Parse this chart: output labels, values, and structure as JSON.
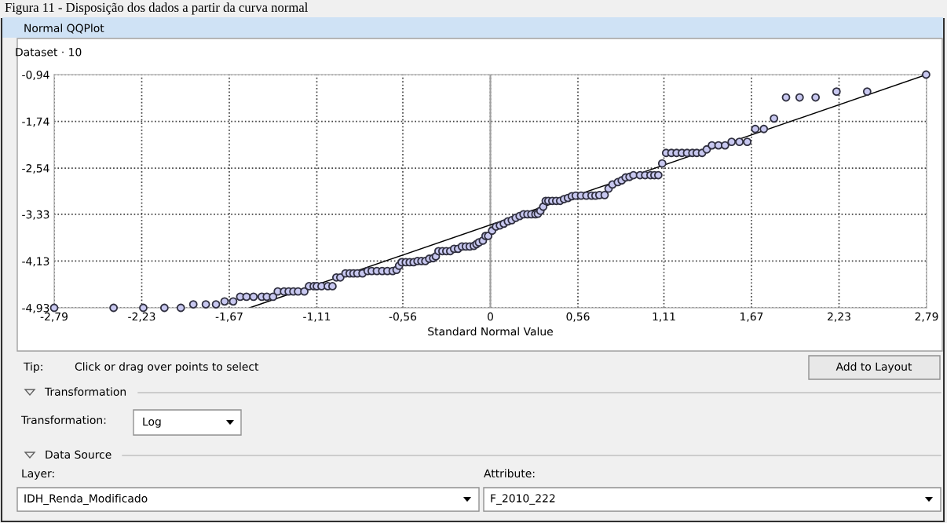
{
  "chart_data": {
    "type": "scatter",
    "title": "Figura 11 - Disposição dos dados a partir da curva normal",
    "subtitle": "Normal QQPlot",
    "xlabel": "Standard Normal Value",
    "ylabel": "Dataset · 10",
    "xlim": [
      -2.79,
      2.79
    ],
    "ylim": [
      -4.93,
      -0.94
    ],
    "xticks": [
      {
        "value": -2.79,
        "label": "-2,79"
      },
      {
        "value": -2.23,
        "label": "-2,23"
      },
      {
        "value": -1.67,
        "label": "-1,67"
      },
      {
        "value": -1.11,
        "label": "-1,11"
      },
      {
        "value": -0.56,
        "label": "-0,56"
      },
      0,
      {
        "value": 0.56,
        "label": "0,56"
      },
      {
        "value": 1.11,
        "label": "1,11"
      },
      {
        "value": 1.67,
        "label": "1,67"
      },
      {
        "value": 2.23,
        "label": "2,23"
      },
      {
        "value": 2.79,
        "label": "2,79"
      }
    ],
    "yticks": [
      {
        "value": -0.94,
        "label": "-0,94"
      },
      {
        "value": -1.74,
        "label": "-1,74"
      },
      {
        "value": -2.54,
        "label": "-2,54"
      },
      {
        "value": -3.33,
        "label": "-3,33"
      },
      {
        "value": -4.13,
        "label": "-4,13"
      },
      {
        "value": -4.93,
        "label": "-4,93"
      }
    ],
    "grid": true,
    "ref_lines": [
      {
        "axis": "x",
        "value": 0,
        "color": "#a0a0a0"
      }
    ],
    "series": [
      {
        "color": "#c8c8f0",
        "marker": "circle",
        "x": [
          -2.79,
          -2.41,
          -2.22,
          -2.085,
          -1.98,
          -1.9,
          -1.82,
          -1.755,
          -1.7,
          -1.645,
          -1.6,
          -1.56,
          -1.515,
          -1.462,
          -1.43,
          -1.39,
          -1.36,
          -1.32,
          -1.29,
          -1.26,
          -1.23,
          -1.19,
          -1.16,
          -1.13,
          -1.11,
          -1.08,
          -1.04,
          -1.01,
          -0.985,
          -0.96,
          -0.927,
          -0.9,
          -0.876,
          -0.851,
          -0.818,
          -0.785,
          -0.759,
          -0.726,
          -0.692,
          -0.659,
          -0.625,
          -0.6,
          -0.584,
          -0.567,
          -0.541,
          -0.516,
          -0.491,
          -0.466,
          -0.441,
          -0.416,
          -0.391,
          -0.366,
          -0.349,
          -0.332,
          -0.307,
          -0.282,
          -0.257,
          -0.232,
          -0.207,
          -0.182,
          -0.157,
          -0.132,
          -0.106,
          -0.089,
          -0.073,
          -0.048,
          -0.031,
          -0.014,
          0.011,
          0.036,
          0.061,
          0.086,
          0.112,
          0.137,
          0.162,
          0.187,
          0.212,
          0.237,
          0.262,
          0.288,
          0.304,
          0.32,
          0.338,
          0.354,
          0.371,
          0.396,
          0.421,
          0.446,
          0.471,
          0.496,
          0.521,
          0.546,
          0.58,
          0.614,
          0.647,
          0.672,
          0.697,
          0.731,
          0.756,
          0.781,
          0.815,
          0.84,
          0.865,
          0.89,
          0.915,
          0.957,
          0.99,
          1.024,
          1.049,
          1.074,
          1.099,
          1.124,
          1.158,
          1.191,
          1.225,
          1.258,
          1.292,
          1.32,
          1.354,
          1.384,
          1.417,
          1.459,
          1.501,
          1.543,
          1.593,
          1.643,
          1.694,
          1.749,
          1.814,
          1.891,
          1.978,
          2.08,
          2.214,
          2.41,
          2.787
        ],
        "values": [
          -4.93,
          -4.93,
          -4.93,
          -4.93,
          -4.93,
          -4.87,
          -4.87,
          -4.87,
          -4.82,
          -4.82,
          -4.74,
          -4.74,
          -4.74,
          -4.74,
          -4.74,
          -4.74,
          -4.65,
          -4.65,
          -4.65,
          -4.65,
          -4.65,
          -4.65,
          -4.56,
          -4.56,
          -4.56,
          -4.56,
          -4.56,
          -4.56,
          -4.41,
          -4.41,
          -4.34,
          -4.34,
          -4.34,
          -4.34,
          -4.34,
          -4.3,
          -4.3,
          -4.3,
          -4.3,
          -4.3,
          -4.3,
          -4.28,
          -4.21,
          -4.15,
          -4.15,
          -4.15,
          -4.15,
          -4.13,
          -4.13,
          -4.13,
          -4.09,
          -4.08,
          -4.05,
          -3.96,
          -3.96,
          -3.96,
          -3.96,
          -3.92,
          -3.92,
          -3.88,
          -3.88,
          -3.88,
          -3.87,
          -3.84,
          -3.81,
          -3.78,
          -3.7,
          -3.7,
          -3.61,
          -3.54,
          -3.52,
          -3.49,
          -3.45,
          -3.43,
          -3.39,
          -3.36,
          -3.33,
          -3.33,
          -3.33,
          -3.33,
          -3.32,
          -3.27,
          -3.2,
          -3.1,
          -3.1,
          -3.1,
          -3.1,
          -3.1,
          -3.07,
          -3.05,
          -3.02,
          -3.01,
          -3.01,
          -3.01,
          -3.01,
          -3.01,
          -3.0,
          -3.0,
          -2.89,
          -2.82,
          -2.78,
          -2.75,
          -2.7,
          -2.69,
          -2.66,
          -2.66,
          -2.66,
          -2.66,
          -2.66,
          -2.66,
          -2.46,
          -2.28,
          -2.28,
          -2.28,
          -2.28,
          -2.28,
          -2.28,
          -2.28,
          -2.28,
          -2.22,
          -2.15,
          -2.15,
          -2.15,
          -2.09,
          -2.09,
          -2.09,
          -1.87,
          -1.87,
          -1.69,
          -1.33,
          -1.33,
          -1.33,
          -1.23,
          -1.23,
          -0.94
        ]
      },
      {
        "type": "line",
        "color": "#000000",
        "x": [
          -1.54,
          2.79
        ],
        "values": [
          -4.93,
          -0.94
        ]
      }
    ],
    "annotations": [
      "Tip:",
      "Click or drag over points to select",
      "Add to Layout",
      "Transformation",
      "Transformation:",
      "Log",
      "Data Source",
      "Layer:",
      "IDH_Renda_Modificado",
      "Attribute:",
      "F_2010_222"
    ]
  }
}
